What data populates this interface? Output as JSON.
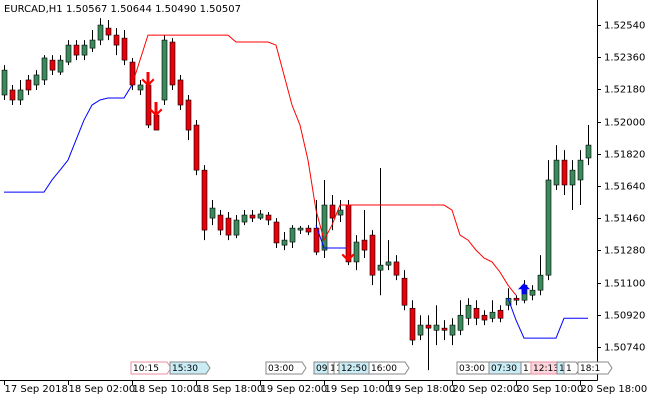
{
  "chart_data": {
    "type": "candlestick",
    "title": "EURCAD,H1",
    "subtitle": "1.50567 1.50644 1.50490 1.50507",
    "categories": [
      "17 Sep 2018",
      null,
      null,
      null,
      null,
      null,
      null,
      null,
      "18 Sep 02:00",
      null,
      null,
      null,
      null,
      null,
      null,
      null,
      "18 Sep 10:00",
      null,
      null,
      null,
      null,
      null,
      null,
      null,
      "18 Sep 18:00",
      null,
      null,
      null,
      null,
      null,
      null,
      null,
      "19 Sep 02:00",
      null,
      null,
      null,
      null,
      null,
      null,
      null,
      "19 Sep 10:00",
      null,
      null,
      null,
      null,
      null,
      null,
      null,
      "19 Sep 18:00",
      null,
      null,
      null,
      null,
      null,
      null,
      null,
      "20 Sep 02:00",
      null,
      null,
      null,
      null,
      null,
      null,
      null,
      "20 Sep 10:00",
      null,
      null,
      null,
      null,
      null,
      null,
      null,
      "20 Sep 18:00",
      null
    ],
    "open": [
      1.52149,
      1.52177,
      1.52121,
      1.52233,
      1.52205,
      1.52233,
      1.52344,
      1.52277,
      1.52333,
      1.52428,
      1.52372,
      1.52411,
      1.52456,
      1.52523,
      1.52484,
      1.52467,
      1.52333,
      1.52177,
      1.52205,
      1.52037,
      1.52121,
      1.52445,
      1.52233,
      1.52121,
      1.51981,
      1.51729,
      1.51461,
      1.51478,
      1.51461,
      1.51366,
      1.51439,
      1.51478,
      1.51461,
      1.51478,
      1.51439,
      1.5131,
      1.51327,
      1.51394,
      1.51405,
      1.51405,
      1.51282,
      1.51534,
      1.51478,
      1.51534,
      1.51216,
      1.51338,
      1.51366,
      1.5117,
      1.51198,
      1.51216,
      1.51125,
      1.50957,
      1.50807,
      1.50863,
      1.50834,
      1.50846,
      1.50807,
      1.50834,
      1.50901,
      1.50957,
      1.50918,
      1.50901,
      1.50946,
      1.50974,
      1.51013,
      1.51002,
      1.5103,
      1.51058,
      1.51142,
      1.51646,
      1.51785,
      1.51646,
      1.51674,
      1.51797
    ],
    "high": [
      1.52316,
      1.52205,
      1.52233,
      1.52261,
      1.52288,
      1.52372,
      1.52372,
      1.52372,
      1.52456,
      1.52456,
      1.52456,
      1.52512,
      1.52579,
      1.52568,
      1.52523,
      1.52512,
      1.52356,
      1.52233,
      1.52261,
      1.52065,
      1.52484,
      1.52467,
      1.52261,
      1.52149,
      1.52009,
      1.51757,
      1.51562,
      1.51506,
      1.51495,
      1.51478,
      1.51506,
      1.51506,
      1.51506,
      1.51495,
      1.51461,
      1.51383,
      1.51422,
      1.51417,
      1.51422,
      1.51562,
      1.51674,
      1.5159,
      1.51562,
      1.51562,
      1.51366,
      1.51506,
      1.51394,
      1.51741,
      1.51338,
      1.51254,
      1.5117,
      1.51002,
      1.50918,
      1.50918,
      1.50974,
      1.50891,
      1.50901,
      1.51002,
      1.51013,
      1.51002,
      1.50946,
      1.51002,
      1.50974,
      1.51069,
      1.5103,
      1.51114,
      1.51086,
      1.51254,
      1.51785,
      1.51869,
      1.51841,
      1.51785,
      1.51841,
      1.51981
    ],
    "low": [
      1.52121,
      1.52093,
      1.52093,
      1.52149,
      1.52177,
      1.52205,
      1.52261,
      1.52261,
      1.52316,
      1.52344,
      1.52344,
      1.52389,
      1.52428,
      1.52456,
      1.52372,
      1.52316,
      1.52177,
      1.52149,
      1.51964,
      1.51953,
      1.52093,
      1.52177,
      1.52065,
      1.51897,
      1.51701,
      1.51338,
      1.51422,
      1.51366,
      1.51338,
      1.51349,
      1.51422,
      1.51439,
      1.5145,
      1.51422,
      1.51294,
      1.51282,
      1.51294,
      1.51372,
      1.51366,
      1.51254,
      1.51238,
      1.51394,
      1.51439,
      1.51198,
      1.5117,
      1.51238,
      1.51086,
      1.5103,
      1.5117,
      1.51114,
      1.50946,
      1.50751,
      1.50779,
      1.50611,
      1.50751,
      1.50779,
      1.50751,
      1.50807,
      1.50863,
      1.50863,
      1.50863,
      1.50879,
      1.50879,
      1.50946,
      1.50974,
      1.50985,
      1.51002,
      1.5103,
      1.51114,
      1.51618,
      1.5159,
      1.51506,
      1.51534,
      1.51757
    ],
    "close": [
      1.52288,
      1.52121,
      1.52177,
      1.52177,
      1.52261,
      1.52356,
      1.52288,
      1.52344,
      1.52428,
      1.52372,
      1.52428,
      1.52456,
      1.5254,
      1.52484,
      1.52428,
      1.52344,
      1.52205,
      1.52205,
      1.51981,
      1.51953,
      1.52456,
      1.52205,
      1.52093,
      1.51953,
      1.51729,
      1.51394,
      1.51517,
      1.51394,
      1.51366,
      1.5145,
      1.51478,
      1.51461,
      1.51484,
      1.5145,
      1.51322,
      1.51338,
      1.51405,
      1.51405,
      1.51383,
      1.51271,
      1.51534,
      1.51461,
      1.51506,
      1.51216,
      1.51327,
      1.51282,
      1.51142,
      1.51198,
      1.51216,
      1.51142,
      1.50974,
      1.50779,
      1.50863,
      1.50846,
      1.50863,
      1.50834,
      1.50863,
      1.50918,
      1.50974,
      1.50901,
      1.50891,
      1.50935,
      1.50901,
      1.51013,
      1.51002,
      1.51086,
      1.51058,
      1.51142,
      1.51674,
      1.51785,
      1.51646,
      1.51729,
      1.51785,
      1.51869
    ],
    "bull_color": "#3a8a5c",
    "bear_color": "#e8000b",
    "series": [
      {
        "color": "#ff0000",
        "values": [
          null,
          null,
          null,
          null,
          null,
          null,
          null,
          null,
          null,
          null,
          null,
          null,
          null,
          null,
          null,
          null,
          1.52205,
          1.52344,
          1.52484,
          1.52484,
          1.52484,
          1.52484,
          1.52484,
          1.52484,
          1.52484,
          1.52484,
          1.52484,
          1.52484,
          1.52484,
          1.52445,
          1.52445,
          1.52445,
          1.52445,
          1.52445,
          1.52428,
          1.52261,
          1.52093,
          1.51981,
          1.51785,
          1.51506,
          1.51338,
          1.51422,
          1.51534,
          1.51534,
          1.51534,
          1.51534,
          1.51534,
          1.51534,
          1.51534,
          1.51534,
          1.51534,
          1.51534,
          1.51534,
          1.51534,
          1.51534,
          1.51534,
          1.51506,
          1.51366,
          1.51338,
          1.51282,
          1.51238,
          1.51216,
          1.51159,
          1.51086,
          1.5103,
          null,
          null,
          null,
          null,
          null,
          null,
          null,
          null,
          null
        ]
      },
      {
        "color": "#0000ff",
        "values": [
          1.51606,
          1.51606,
          1.51606,
          1.51606,
          1.51606,
          1.51606,
          1.51674,
          1.51729,
          1.51785,
          1.51897,
          1.52009,
          1.52093,
          1.52121,
          1.52132,
          1.52132,
          1.52132,
          1.52205,
          null,
          null,
          null,
          null,
          null,
          null,
          null,
          null,
          null,
          null,
          null,
          null,
          null,
          null,
          null,
          null,
          null,
          null,
          null,
          null,
          null,
          null,
          1.51422,
          1.51294,
          1.51294,
          1.51294,
          1.51294,
          null,
          null,
          null,
          null,
          null,
          null,
          null,
          null,
          null,
          null,
          null,
          null,
          null,
          null,
          null,
          null,
          null,
          null,
          null,
          1.51013,
          1.50891,
          1.5079,
          1.5079,
          1.5079,
          1.5079,
          1.5079,
          1.50901,
          1.50901,
          1.50901,
          1.50901
        ]
      }
    ],
    "sell_arrows": {
      "color": "#ff0000",
      "values": [
        null,
        null,
        null,
        null,
        null,
        null,
        null,
        null,
        null,
        null,
        null,
        null,
        null,
        null,
        null,
        null,
        null,
        null,
        1.52233,
        1.52065,
        null,
        null,
        null,
        null,
        null,
        null,
        null,
        null,
        null,
        null,
        null,
        null,
        null,
        null,
        null,
        null,
        null,
        null,
        null,
        null,
        null,
        null,
        null,
        1.51254,
        null,
        null,
        null,
        null,
        null,
        null,
        null,
        null,
        null,
        null,
        null,
        null,
        null,
        null,
        null,
        null,
        null,
        null,
        null,
        null,
        null,
        null,
        null,
        null,
        null,
        null,
        null,
        null,
        null,
        null
      ]
    },
    "buy_arrows": {
      "color": "#0000ff",
      "values": [
        null,
        null,
        null,
        null,
        null,
        null,
        null,
        null,
        null,
        null,
        null,
        null,
        null,
        null,
        null,
        null,
        null,
        null,
        null,
        null,
        null,
        null,
        null,
        null,
        null,
        null,
        null,
        null,
        null,
        null,
        null,
        null,
        null,
        null,
        null,
        null,
        null,
        null,
        null,
        null,
        null,
        null,
        null,
        null,
        null,
        null,
        null,
        null,
        null,
        null,
        null,
        null,
        null,
        null,
        null,
        null,
        null,
        null,
        null,
        null,
        null,
        null,
        null,
        null,
        null,
        1.51058,
        null,
        null,
        null,
        null,
        null,
        null,
        null,
        null
      ]
    },
    "ylim": [
      1.50556,
      1.5268
    ],
    "yticks": [
      {
        "value": 1.5254,
        "label": "1.52540"
      },
      {
        "value": 1.5236,
        "label": "1.52360"
      },
      {
        "value": 1.5218,
        "label": "1.52180"
      },
      {
        "value": 1.52,
        "label": "1.52000"
      },
      {
        "value": 1.5182,
        "label": "1.51820"
      },
      {
        "value": 1.5164,
        "label": "1.51640"
      },
      {
        "value": 1.5146,
        "label": "1.51460"
      },
      {
        "value": 1.5128,
        "label": "1.51280"
      },
      {
        "value": 1.511,
        "label": "1.51100"
      },
      {
        "value": 1.5092,
        "label": "1.50920"
      },
      {
        "value": 1.5074,
        "label": "1.50740"
      }
    ],
    "time_markers": [
      {
        "label": "10:15",
        "fill": "#ffffff",
        "edge": "#e88fa0"
      },
      {
        "label": "15:30",
        "fill": "#c9ecf5",
        "edge": "#888888"
      },
      {
        "label": "03:00",
        "fill": "#ffffff",
        "edge": "#888888"
      },
      {
        "label": "09:",
        "fill": "#c9ecf5",
        "edge": "#888888"
      },
      {
        "label": "1",
        "fill": "#ffffff",
        "edge": "#888888"
      },
      {
        "label": "1",
        "fill": "#ffffff",
        "edge": "#888888"
      },
      {
        "label": "12:50",
        "fill": "#c9ecf5",
        "edge": "#888888"
      },
      {
        "label": "16:00",
        "fill": "#ffffff",
        "edge": "#888888"
      },
      {
        "label": "03:00",
        "fill": "#ffffff",
        "edge": "#888888"
      },
      {
        "label": "07:30",
        "fill": "#c9ecf5",
        "edge": "#888888"
      },
      {
        "label": "1",
        "fill": "#ffffff",
        "edge": "#888888"
      },
      {
        "label": "12:13",
        "fill": "#fcd6dc",
        "edge": "#e88fa0"
      },
      {
        "label": "1",
        "fill": "#c9ecf5",
        "edge": "#888888"
      },
      {
        "label": "1",
        "fill": "#ffffff",
        "edge": "#888888"
      },
      {
        "label": "18:1",
        "fill": "#ffffff",
        "edge": "#888888"
      }
    ]
  }
}
